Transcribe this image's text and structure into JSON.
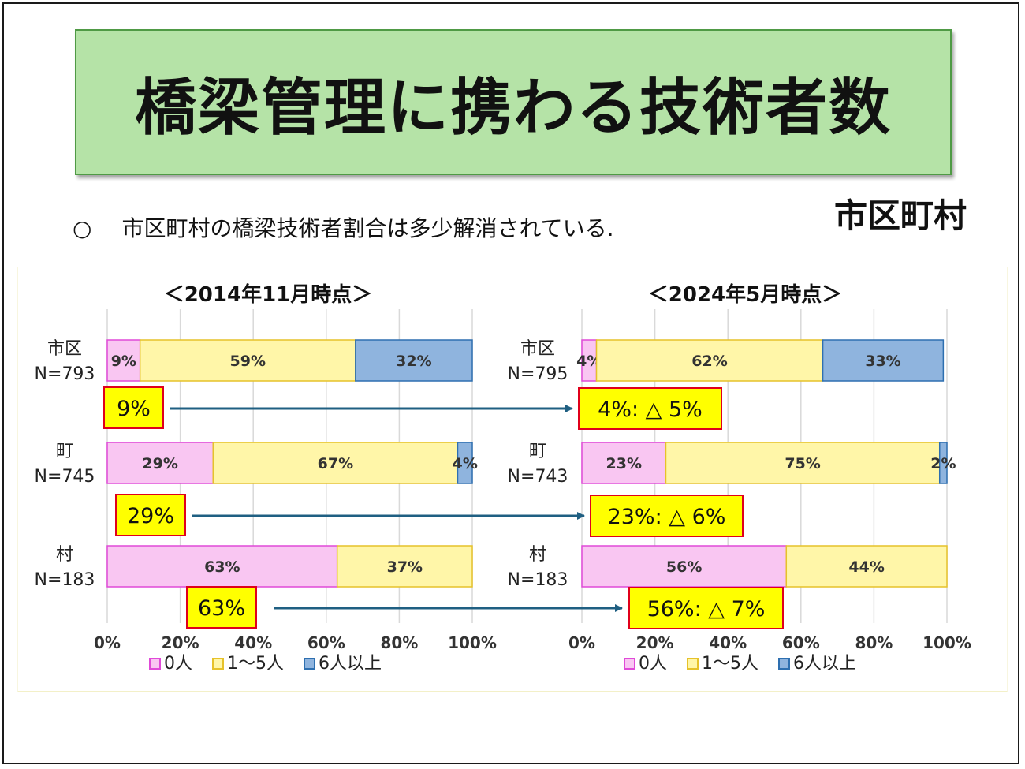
{
  "header": {
    "title": "橋梁管理に携わる技術者数",
    "subject": "市区町村",
    "bullet_mark": "○",
    "bullet_text": "市区町村の橋梁技術者割合は多少解消されている."
  },
  "colors": {
    "zero": "#f9c6f2",
    "zero_border": "#e04ad8",
    "one_to_five": "#fff6a8",
    "one_to_five_border": "#e6c22a",
    "six_plus": "#8fb4de",
    "six_plus_border": "#2e6fb0",
    "callout_fill": "#ffff00",
    "callout_border": "#e0001b",
    "arrow": "#1f5f82"
  },
  "chart_data": [
    {
      "type": "bar",
      "orientation": "horizontal-stacked-100",
      "title": "＜2014年11月時点＞",
      "categories": [
        "市区",
        "町",
        "村"
      ],
      "category_n": [
        "N=793",
        "N=745",
        "N=183"
      ],
      "series": [
        {
          "name": "0人",
          "values": [
            9,
            29,
            63
          ],
          "labels": [
            "9%",
            "29%",
            "63%"
          ]
        },
        {
          "name": "1～5人",
          "values": [
            59,
            67,
            37
          ],
          "labels": [
            "59%",
            "67%",
            "37%"
          ]
        },
        {
          "name": "6人以上",
          "values": [
            32,
            4,
            0
          ],
          "labels": [
            "32%",
            "4%",
            ""
          ]
        }
      ],
      "xlim": [
        0,
        100
      ],
      "ticks": [
        "0%",
        "20%",
        "40%",
        "60%",
        "80%",
        "100%"
      ],
      "grid": true,
      "legend": "bottom-left"
    },
    {
      "type": "bar",
      "orientation": "horizontal-stacked-100",
      "title": "＜2024年5月時点＞",
      "categories": [
        "市区",
        "町",
        "村"
      ],
      "category_n": [
        "N=795",
        "N=743",
        "N=183"
      ],
      "series": [
        {
          "name": "0人",
          "values": [
            4,
            23,
            56
          ],
          "labels": [
            "4%",
            "23%",
            "56%"
          ]
        },
        {
          "name": "1～5人",
          "values": [
            62,
            75,
            44
          ],
          "labels": [
            "62%",
            "75%",
            "44%"
          ]
        },
        {
          "name": "6人以上",
          "values": [
            33,
            2,
            0
          ],
          "labels": [
            "33%",
            "2%",
            ""
          ]
        }
      ],
      "xlim": [
        0,
        100
      ],
      "ticks": [
        "0%",
        "20%",
        "40%",
        "60%",
        "80%",
        "100%"
      ],
      "grid": true,
      "legend": "bottom-left"
    }
  ],
  "callouts": [
    {
      "from": "9%",
      "to": "4%: △ 5%"
    },
    {
      "from": "29%",
      "to": "23%: △  6%"
    },
    {
      "from": "63%",
      "to": "56%: △  7%"
    }
  ]
}
